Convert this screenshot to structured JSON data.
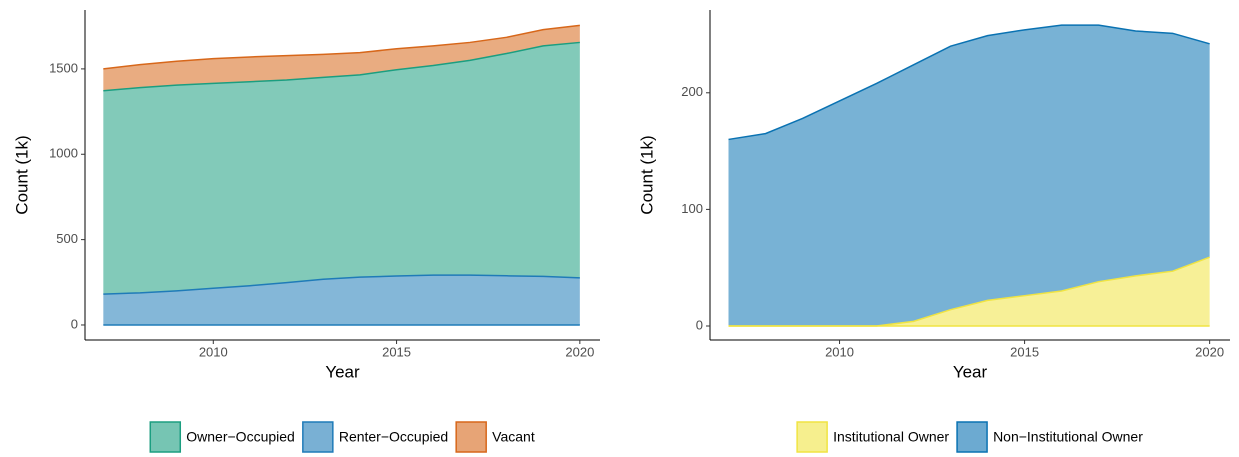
{
  "chart_data": [
    {
      "type": "stacked-area",
      "x_label": "Year",
      "y_label": "Count (1k)",
      "x": [
        2007,
        2008,
        2009,
        2010,
        2011,
        2012,
        2013,
        2014,
        2015,
        2016,
        2017,
        2018,
        2019,
        2020
      ],
      "xlim": [
        2006.5,
        2020.55
      ],
      "xticks": [
        2010,
        2015,
        2020
      ],
      "ylim": [
        -88,
        1845
      ],
      "yticks": [
        0,
        500,
        1000,
        1500
      ],
      "series": [
        {
          "name": "Renter−Occupied",
          "color": "#1f7bb8",
          "values": [
            181,
            188,
            200,
            215,
            230,
            248,
            268,
            280,
            287,
            292,
            292,
            288,
            285,
            276
          ]
        },
        {
          "name": "Owner−Occupied",
          "color": "#1b9e80",
          "values": [
            1191,
            1202,
            1205,
            1200,
            1195,
            1187,
            1182,
            1185,
            1208,
            1228,
            1258,
            1302,
            1350,
            1379
          ]
        },
        {
          "name": "Vacant",
          "color": "#d7671a",
          "values": [
            128,
            135,
            140,
            145,
            145,
            143,
            135,
            130,
            123,
            115,
            105,
            95,
            95,
            100
          ]
        }
      ],
      "legend_order": [
        1,
        0,
        2
      ]
    },
    {
      "type": "stacked-area",
      "x_label": "Year",
      "y_label": "Count (1k)",
      "x": [
        2007,
        2008,
        2009,
        2010,
        2011,
        2012,
        2013,
        2014,
        2015,
        2016,
        2017,
        2018,
        2019,
        2020
      ],
      "xlim": [
        2006.5,
        2020.55
      ],
      "xticks": [
        2010,
        2015,
        2020
      ],
      "ylim": [
        -12,
        271
      ],
      "yticks": [
        0,
        100,
        200
      ],
      "series": [
        {
          "name": "Institutional Owner",
          "color": "#f0e442",
          "values": [
            0,
            0,
            0,
            0,
            0,
            4,
            14,
            22,
            26,
            30,
            38,
            43,
            47,
            59
          ]
        },
        {
          "name": "Non−Institutional Owner",
          "color": "#0a72b2",
          "values": [
            160,
            165,
            178,
            193,
            208,
            220,
            226,
            227,
            228,
            228,
            220,
            210,
            204,
            183
          ]
        }
      ],
      "legend_order": [
        0,
        1
      ]
    }
  ]
}
